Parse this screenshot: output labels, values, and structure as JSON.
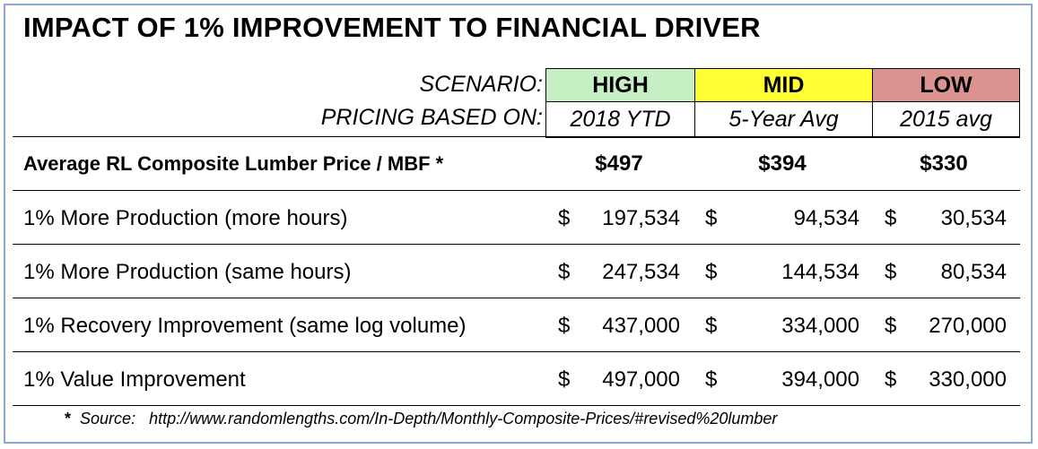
{
  "title": "IMPACT OF 1% IMPROVEMENT TO FINANCIAL DRIVER",
  "header": {
    "scenario_label": "SCENARIO:",
    "pricing_label": "PRICING BASED ON:",
    "columns": [
      {
        "scenario": "HIGH",
        "pricing": "2018 YTD",
        "color": "#c7efc4"
      },
      {
        "scenario": "MID",
        "pricing": "5-Year Avg",
        "color": "#ffff33"
      },
      {
        "scenario": "LOW",
        "pricing": "2015 avg",
        "color": "#dc9390"
      }
    ]
  },
  "price_row": {
    "label": "Average RL Composite Lumber Price / MBF *",
    "values": [
      "$497",
      "$394",
      "$330"
    ]
  },
  "rows": [
    {
      "label": "1% More Production (more hours)",
      "currency": "$",
      "values": [
        "197,534",
        "94,534",
        "30,534"
      ]
    },
    {
      "label": "1% More Production (same hours)",
      "currency": "$",
      "values": [
        "247,534",
        "144,534",
        "80,534"
      ]
    },
    {
      "label": "1% Recovery Improvement  (same log volume)",
      "currency": "$",
      "values": [
        "437,000",
        "334,000",
        "270,000"
      ]
    },
    {
      "label": "1% Value Improvement",
      "currency": "$",
      "values": [
        "497,000",
        "394,000",
        "330,000"
      ]
    }
  ],
  "footnote": {
    "marker": "*",
    "label": "Source:",
    "url": "http://www.randomlengths.com/In-Depth/Monthly-Composite-Prices/#revised%20lumber"
  }
}
